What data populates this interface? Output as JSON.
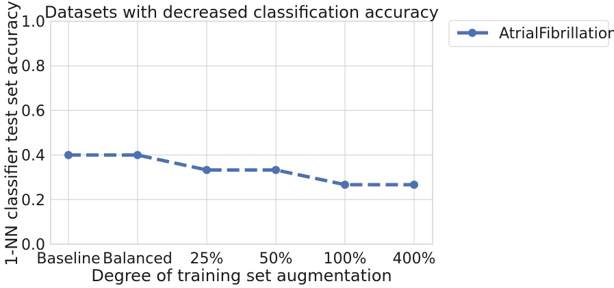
{
  "chart_data": {
    "type": "line",
    "title": "Datasets with decreased classification accuracy",
    "xlabel": "Degree of training set augmentation",
    "ylabel": "1-NN classifier test set accuracy",
    "categories": [
      "Baseline",
      "Balanced",
      "25%",
      "50%",
      "100%",
      "400%"
    ],
    "ylim": [
      0,
      1
    ],
    "yticks": [
      "0.0",
      "0.2",
      "0.4",
      "0.6",
      "0.8",
      "1.0"
    ],
    "ytick_values": [
      0,
      0.2,
      0.4,
      0.6,
      0.8,
      1.0
    ],
    "grid": true,
    "legend_position": "outside-top-right",
    "series": [
      {
        "name": "AtrialFibrillation",
        "values": [
          0.4,
          0.4,
          0.333,
          0.333,
          0.267,
          0.267
        ],
        "color": "#4c72b0",
        "line_style": "dashed",
        "marker": "circle"
      }
    ]
  }
}
